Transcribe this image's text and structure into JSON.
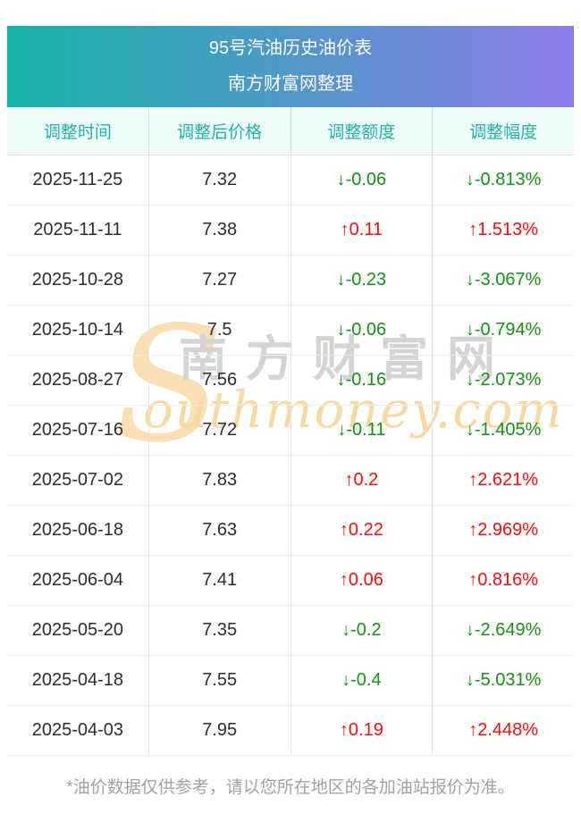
{
  "banner": {
    "title": "95号汽油历史油价表",
    "subtitle": "南方财富网整理"
  },
  "columns": [
    "调整时间",
    "调整后价格",
    "调整额度",
    "调整幅度"
  ],
  "rows": [
    {
      "date": "2025-11-25",
      "price": "7.32",
      "change": "↓-0.06",
      "pct": "↓-0.813%",
      "direction": "down"
    },
    {
      "date": "2025-11-11",
      "price": "7.38",
      "change": "↑0.11",
      "pct": "↑1.513%",
      "direction": "up"
    },
    {
      "date": "2025-10-28",
      "price": "7.27",
      "change": "↓-0.23",
      "pct": "↓-3.067%",
      "direction": "down"
    },
    {
      "date": "2025-10-14",
      "price": "7.5",
      "change": "↓-0.06",
      "pct": "↓-0.794%",
      "direction": "down"
    },
    {
      "date": "2025-08-27",
      "price": "7.56",
      "change": "↓-0.16",
      "pct": "↓-2.073%",
      "direction": "down"
    },
    {
      "date": "2025-07-16",
      "price": "7.72",
      "change": "↓-0.11",
      "pct": "↓-1.405%",
      "direction": "down"
    },
    {
      "date": "2025-07-02",
      "price": "7.83",
      "change": "↑0.2",
      "pct": "↑2.621%",
      "direction": "up"
    },
    {
      "date": "2025-06-18",
      "price": "7.63",
      "change": "↑0.22",
      "pct": "↑2.969%",
      "direction": "up"
    },
    {
      "date": "2025-06-04",
      "price": "7.41",
      "change": "↑0.06",
      "pct": "↑0.816%",
      "direction": "up"
    },
    {
      "date": "2025-05-20",
      "price": "7.35",
      "change": "↓-0.2",
      "pct": "↓-2.649%",
      "direction": "down"
    },
    {
      "date": "2025-04-18",
      "price": "7.55",
      "change": "↓-0.4",
      "pct": "↓-5.031%",
      "direction": "down"
    },
    {
      "date": "2025-04-03",
      "price": "7.95",
      "change": "↑0.19",
      "pct": "↑2.448%",
      "direction": "up"
    }
  ],
  "watermark": {
    "big_s": "S",
    "cn": "南方财富网",
    "en": "outhmoney.com"
  },
  "footer": {
    "note": "*油价数据仅供参考，请以您所在地区的各加油站报价为准。"
  },
  "colors": {
    "banner_gradient_start": "#14b3a6",
    "banner_gradient_end": "#8d7ce9",
    "header_row_bg": "#eefcfa",
    "header_row_text": "#27b2a3",
    "up_red": "#f50f0f",
    "down_green": "#149314",
    "body_text": "#2d2d2d",
    "footer_text": "#a2a2a2",
    "watermark_orange": "#f8d9a6",
    "watermark_gray": "#d4d4d4"
  },
  "chart_data": {
    "type": "table",
    "title": "95号汽油历史油价表",
    "subtitle": "南方财富网整理",
    "columns": [
      "调整时间",
      "调整后价格",
      "调整额度",
      "调整幅度"
    ],
    "rows": [
      [
        "2025-11-25",
        7.32,
        -0.06,
        "-0.813%"
      ],
      [
        "2025-11-11",
        7.38,
        0.11,
        "+1.513%"
      ],
      [
        "2025-10-28",
        7.27,
        -0.23,
        "-3.067%"
      ],
      [
        "2025-10-14",
        7.5,
        -0.06,
        "-0.794%"
      ],
      [
        "2025-08-27",
        7.56,
        -0.16,
        "-2.073%"
      ],
      [
        "2025-07-16",
        7.72,
        -0.11,
        "-1.405%"
      ],
      [
        "2025-07-02",
        7.83,
        0.2,
        "+2.621%"
      ],
      [
        "2025-06-18",
        7.63,
        0.22,
        "+2.969%"
      ],
      [
        "2025-06-04",
        7.41,
        0.06,
        "+0.816%"
      ],
      [
        "2025-05-20",
        7.35,
        -0.2,
        "-2.649%"
      ],
      [
        "2025-04-18",
        7.55,
        -0.4,
        "-5.031%"
      ],
      [
        "2025-04-03",
        7.95,
        0.19,
        "+2.448%"
      ]
    ]
  }
}
